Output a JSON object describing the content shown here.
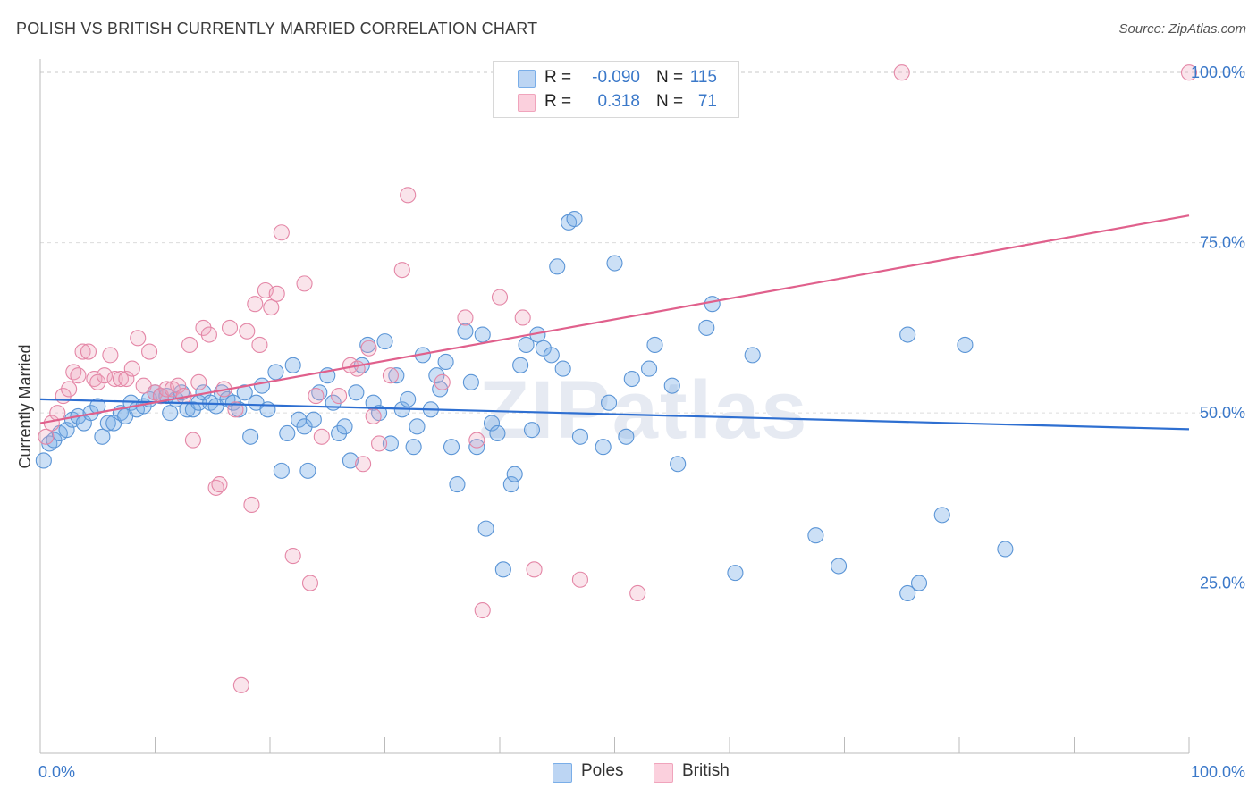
{
  "header": {
    "title": "POLISH VS BRITISH CURRENTLY MARRIED CORRELATION CHART",
    "source": "Source: ZipAtlas.com"
  },
  "watermark": "ZIPatlas",
  "legend": {
    "rows": [
      {
        "r_label": "R =",
        "r_value": "-0.090",
        "n_label": "N =",
        "n_value": "115",
        "color": "#7aaee8"
      },
      {
        "r_label": "R =",
        "r_value": "0.318",
        "n_label": "N =",
        "n_value": "71",
        "color": "#f0a4bc"
      }
    ]
  },
  "bottom_legend": {
    "items": [
      {
        "label": "Poles",
        "color": "#7aaee8"
      },
      {
        "label": "British",
        "color": "#f0a4bc"
      }
    ]
  },
  "chart_data": {
    "type": "scatter",
    "title": "POLISH VS BRITISH CURRENTLY MARRIED CORRELATION CHART",
    "xlabel": "",
    "ylabel": "Currently Married",
    "xlim": [
      0,
      100
    ],
    "ylim": [
      0,
      102
    ],
    "x_tick_labels": [
      "0.0%",
      "100.0%"
    ],
    "y_ticks": [
      25,
      50,
      75,
      100
    ],
    "y_tick_labels": [
      "25.0%",
      "50.0%",
      "75.0%",
      "100.0%"
    ],
    "grid": true,
    "legend_position": "top-center",
    "series": [
      {
        "name": "Poles",
        "color": "#7aaee8",
        "stroke": "#5b95d6",
        "trend": {
          "x": [
            0,
            100
          ],
          "y": [
            52.0,
            47.6
          ],
          "color": "#2e6fd1"
        },
        "points": [
          [
            0.3,
            43.0
          ],
          [
            0.8,
            45.5
          ],
          [
            1.2,
            46.0
          ],
          [
            1.7,
            47.0
          ],
          [
            2.3,
            47.5
          ],
          [
            2.8,
            49.0
          ],
          [
            3.3,
            49.5
          ],
          [
            3.8,
            48.5
          ],
          [
            4.4,
            50.0
          ],
          [
            5.0,
            51.0
          ],
          [
            5.4,
            46.5
          ],
          [
            5.9,
            48.5
          ],
          [
            6.4,
            48.5
          ],
          [
            7.0,
            50.0
          ],
          [
            7.4,
            49.5
          ],
          [
            7.9,
            51.5
          ],
          [
            8.4,
            50.5
          ],
          [
            9.0,
            51.0
          ],
          [
            9.5,
            52.0
          ],
          [
            10.0,
            53.0
          ],
          [
            10.5,
            52.5
          ],
          [
            11.0,
            52.5
          ],
          [
            11.3,
            50.0
          ],
          [
            11.8,
            52.0
          ],
          [
            12.3,
            53.0
          ],
          [
            12.8,
            50.5
          ],
          [
            13.3,
            50.5
          ],
          [
            13.8,
            51.5
          ],
          [
            14.2,
            53.0
          ],
          [
            14.8,
            51.5
          ],
          [
            15.3,
            51.0
          ],
          [
            15.8,
            53.0
          ],
          [
            16.3,
            52.0
          ],
          [
            16.8,
            51.5
          ],
          [
            17.3,
            50.5
          ],
          [
            17.8,
            53.0
          ],
          [
            18.3,
            46.5
          ],
          [
            18.8,
            51.5
          ],
          [
            19.3,
            54.0
          ],
          [
            19.8,
            50.5
          ],
          [
            20.5,
            56.0
          ],
          [
            21.0,
            41.5
          ],
          [
            21.5,
            47.0
          ],
          [
            22.0,
            57.0
          ],
          [
            22.5,
            49.0
          ],
          [
            23.0,
            48.0
          ],
          [
            23.3,
            41.5
          ],
          [
            23.8,
            49.0
          ],
          [
            24.3,
            53.0
          ],
          [
            25.0,
            55.5
          ],
          [
            25.5,
            51.5
          ],
          [
            26.0,
            47.0
          ],
          [
            26.5,
            48.0
          ],
          [
            27.0,
            43.0
          ],
          [
            27.5,
            53.0
          ],
          [
            28.0,
            57.0
          ],
          [
            28.5,
            60.0
          ],
          [
            29.0,
            51.5
          ],
          [
            29.5,
            50.0
          ],
          [
            30.0,
            60.5
          ],
          [
            30.5,
            45.5
          ],
          [
            31.0,
            55.5
          ],
          [
            31.5,
            50.5
          ],
          [
            32.0,
            52.0
          ],
          [
            32.5,
            45.0
          ],
          [
            32.8,
            48.0
          ],
          [
            33.3,
            58.5
          ],
          [
            34.0,
            50.5
          ],
          [
            34.5,
            55.5
          ],
          [
            34.8,
            53.5
          ],
          [
            35.3,
            57.5
          ],
          [
            35.8,
            45.0
          ],
          [
            36.3,
            39.5
          ],
          [
            37.0,
            62.0
          ],
          [
            37.5,
            54.5
          ],
          [
            38.0,
            45.0
          ],
          [
            38.5,
            61.5
          ],
          [
            38.8,
            33.0
          ],
          [
            39.3,
            48.5
          ],
          [
            39.8,
            47.0
          ],
          [
            40.3,
            27.0
          ],
          [
            41.0,
            39.5
          ],
          [
            41.3,
            41.0
          ],
          [
            41.8,
            57.0
          ],
          [
            42.3,
            60.0
          ],
          [
            42.8,
            47.5
          ],
          [
            43.3,
            61.5
          ],
          [
            43.8,
            59.5
          ],
          [
            44.5,
            58.5
          ],
          [
            45.0,
            71.5
          ],
          [
            45.5,
            56.5
          ],
          [
            46.0,
            78.0
          ],
          [
            46.5,
            78.5
          ],
          [
            47.0,
            46.5
          ],
          [
            49.0,
            45.0
          ],
          [
            49.5,
            51.5
          ],
          [
            50.0,
            72.0
          ],
          [
            51.0,
            46.5
          ],
          [
            51.5,
            55.0
          ],
          [
            53.0,
            56.5
          ],
          [
            53.5,
            60.0
          ],
          [
            55.0,
            54.0
          ],
          [
            55.5,
            42.5
          ],
          [
            58.0,
            62.5
          ],
          [
            58.5,
            66.0
          ],
          [
            60.5,
            26.5
          ],
          [
            62.0,
            58.5
          ],
          [
            67.5,
            32.0
          ],
          [
            69.5,
            27.5
          ],
          [
            75.5,
            23.5
          ],
          [
            76.5,
            25.0
          ],
          [
            75.5,
            61.5
          ],
          [
            78.5,
            35.0
          ],
          [
            80.5,
            60.0
          ],
          [
            84.0,
            30.0
          ]
        ]
      },
      {
        "name": "British",
        "color": "#f0a4bc",
        "stroke": "#e486a6",
        "trend": {
          "x": [
            0,
            100
          ],
          "y": [
            48.5,
            79.0
          ],
          "color": "#e0608c"
        },
        "points": [
          [
            0.5,
            46.5
          ],
          [
            1.0,
            48.5
          ],
          [
            1.5,
            50.0
          ],
          [
            2.0,
            52.5
          ],
          [
            2.5,
            53.5
          ],
          [
            2.9,
            56.0
          ],
          [
            3.3,
            55.5
          ],
          [
            3.7,
            59.0
          ],
          [
            4.2,
            59.0
          ],
          [
            4.7,
            55.0
          ],
          [
            5.0,
            54.5
          ],
          [
            5.6,
            55.5
          ],
          [
            6.1,
            58.5
          ],
          [
            6.5,
            55.0
          ],
          [
            7.0,
            55.0
          ],
          [
            7.5,
            55.0
          ],
          [
            8.0,
            56.5
          ],
          [
            8.5,
            61.0
          ],
          [
            9.0,
            54.0
          ],
          [
            9.5,
            59.0
          ],
          [
            10.0,
            53.0
          ],
          [
            10.5,
            52.5
          ],
          [
            11.0,
            53.5
          ],
          [
            11.5,
            53.5
          ],
          [
            12.0,
            54.0
          ],
          [
            12.5,
            52.5
          ],
          [
            13.0,
            60.0
          ],
          [
            13.3,
            46.0
          ],
          [
            13.8,
            54.5
          ],
          [
            14.2,
            62.5
          ],
          [
            14.7,
            61.5
          ],
          [
            15.3,
            39.0
          ],
          [
            15.6,
            39.5
          ],
          [
            16.0,
            53.5
          ],
          [
            16.5,
            62.5
          ],
          [
            17.0,
            50.5
          ],
          [
            17.5,
            10.0
          ],
          [
            18.0,
            62.0
          ],
          [
            18.4,
            36.5
          ],
          [
            18.7,
            66.0
          ],
          [
            19.1,
            60.0
          ],
          [
            19.6,
            68.0
          ],
          [
            20.1,
            65.5
          ],
          [
            20.6,
            67.5
          ],
          [
            21.0,
            76.5
          ],
          [
            22.0,
            29.0
          ],
          [
            23.0,
            69.0
          ],
          [
            23.5,
            25.0
          ],
          [
            24.0,
            52.5
          ],
          [
            24.5,
            46.5
          ],
          [
            26.0,
            52.5
          ],
          [
            27.0,
            57.0
          ],
          [
            27.6,
            56.5
          ],
          [
            28.1,
            42.5
          ],
          [
            28.6,
            59.5
          ],
          [
            29.0,
            49.5
          ],
          [
            29.5,
            45.5
          ],
          [
            30.5,
            55.5
          ],
          [
            31.5,
            71.0
          ],
          [
            32.0,
            82.0
          ],
          [
            35.0,
            54.5
          ],
          [
            37.0,
            64.0
          ],
          [
            38.0,
            46.0
          ],
          [
            38.5,
            21.0
          ],
          [
            40.0,
            67.0
          ],
          [
            42.0,
            64.0
          ],
          [
            43.0,
            27.0
          ],
          [
            47.0,
            25.5
          ],
          [
            52.0,
            23.5
          ],
          [
            75.0,
            100.0
          ],
          [
            100.0,
            100.0
          ]
        ]
      }
    ]
  }
}
